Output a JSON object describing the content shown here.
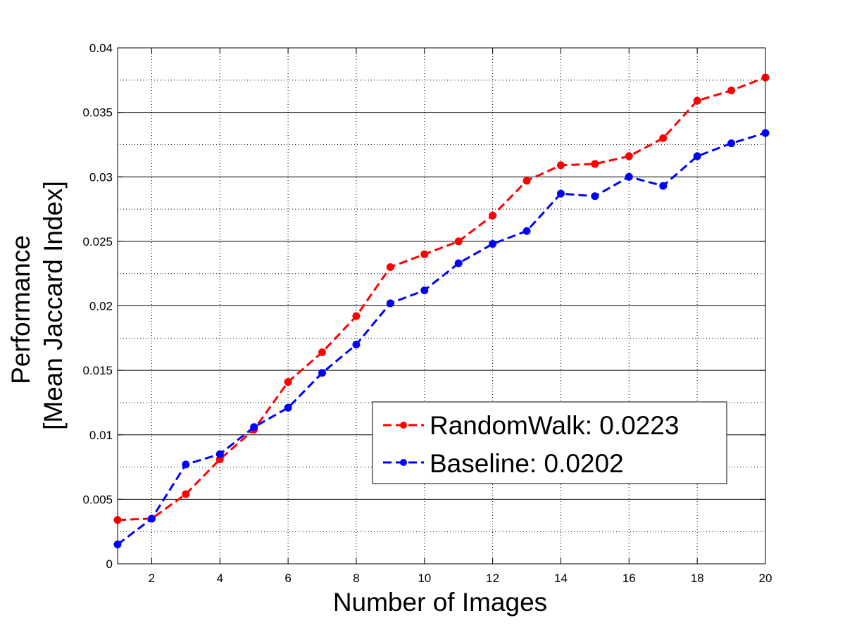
{
  "chart_data": {
    "type": "line",
    "title": "",
    "xlabel": "Number of Images",
    "ylabel_lines": [
      "Performance",
      "[Mean Jaccard Index]"
    ],
    "xlim": [
      1,
      20
    ],
    "ylim": [
      0,
      0.04
    ],
    "x_ticks": [
      2,
      4,
      6,
      8,
      10,
      12,
      14,
      16,
      18,
      20
    ],
    "x_tick_labels": [
      "2",
      "4",
      "6",
      "8",
      "10",
      "12",
      "14",
      "16",
      "18",
      "20"
    ],
    "y_ticks": [
      0,
      0.005,
      0.01,
      0.015,
      0.02,
      0.025,
      0.03,
      0.035,
      0.04
    ],
    "y_tick_labels": [
      "0",
      "0.005",
      "0.01",
      "0.015",
      "0.02",
      "0.025",
      "0.03",
      "0.035",
      "0.04"
    ],
    "grid": "on",
    "legend_position": "center-right",
    "x": [
      1,
      2,
      3,
      4,
      5,
      6,
      7,
      8,
      9,
      10,
      11,
      12,
      13,
      14,
      15,
      16,
      17,
      18,
      19,
      20
    ],
    "series": [
      {
        "name": "RandomWalk: 0.0223",
        "color": "#ff0000",
        "values": [
          0.0034,
          0.0035,
          0.0054,
          0.0081,
          0.0104,
          0.0141,
          0.0164,
          0.0192,
          0.023,
          0.024,
          0.025,
          0.027,
          0.0297,
          0.0309,
          0.031,
          0.0316,
          0.033,
          0.0359,
          0.0367,
          0.0377
        ]
      },
      {
        "name": "Baseline: 0.0202",
        "color": "#0000ff",
        "values": [
          0.0015,
          0.0035,
          0.0077,
          0.0085,
          0.0106,
          0.0121,
          0.0148,
          0.017,
          0.0202,
          0.0212,
          0.0233,
          0.0248,
          0.0258,
          0.0287,
          0.0285,
          0.03,
          0.0293,
          0.0316,
          0.0326,
          0.0334
        ]
      }
    ]
  }
}
